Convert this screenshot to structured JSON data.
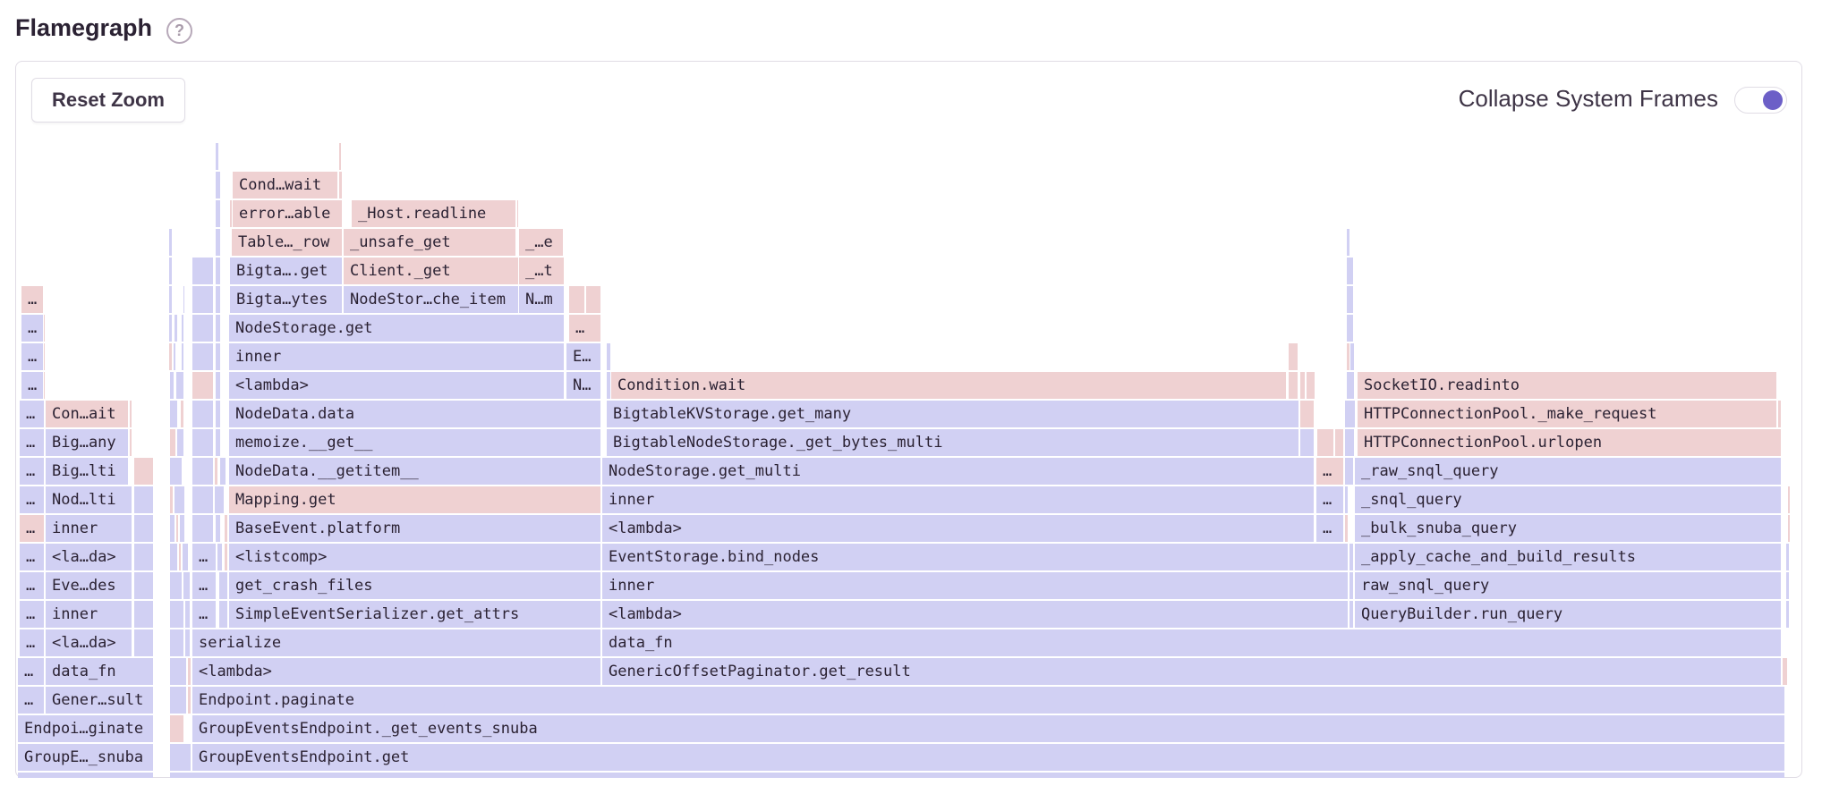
{
  "header": {
    "title": "Flamegraph",
    "help_icon": "question-circle-icon"
  },
  "toolbar": {
    "reset_zoom_label": "Reset Zoom",
    "collapse_label": "Collapse System Frames",
    "collapse_enabled": true
  },
  "colors": {
    "b": "#d1d0f3",
    "p": "#efd1d2",
    "accent": "#6c5fc7"
  },
  "flamegraph": {
    "frames": [
      [
        0,
        "",
        "b"
      ],
      [
        0,
        "",
        "b"
      ],
      [
        1,
        "GroupE…_snuba",
        "b"
      ],
      [
        1,
        "",
        "b"
      ],
      [
        1,
        "GroupEventsEndpoint.get",
        "b"
      ],
      [
        2,
        "Endpoi…ginate",
        "b"
      ],
      [
        2,
        "",
        "p"
      ],
      [
        2,
        "GroupEventsEndpoint._get_events_snuba",
        "b"
      ],
      [
        3,
        "…",
        "b"
      ],
      [
        3,
        "Gener…sult",
        "b"
      ],
      [
        3,
        "",
        "b"
      ],
      [
        3,
        "",
        "p"
      ],
      [
        3,
        "Endpoint.paginate",
        "b"
      ],
      [
        4,
        "…",
        "b"
      ],
      [
        4,
        "data_fn",
        "b"
      ],
      [
        4,
        "",
        "b"
      ],
      [
        4,
        "",
        "p"
      ],
      [
        4,
        "<lambda>",
        "b"
      ],
      [
        4,
        "GenericOffsetPaginator.get_result",
        "b"
      ],
      [
        4,
        "",
        "p"
      ],
      [
        5,
        "…",
        "b"
      ],
      [
        5,
        "<la…da>",
        "b"
      ],
      [
        5,
        "",
        "b"
      ],
      [
        5,
        "",
        "b"
      ],
      [
        5,
        "",
        "b"
      ],
      [
        5,
        "serialize",
        "b"
      ],
      [
        5,
        "data_fn",
        "b"
      ],
      [
        6,
        "…",
        "b"
      ],
      [
        6,
        "inner",
        "b"
      ],
      [
        6,
        "",
        "b"
      ],
      [
        6,
        "",
        "b"
      ],
      [
        6,
        "",
        "b"
      ],
      [
        6,
        "…",
        "b"
      ],
      [
        6,
        "",
        "b"
      ],
      [
        6,
        "SimpleEventSerializer.get_attrs",
        "b"
      ],
      [
        6,
        "<lambda>",
        "b"
      ],
      [
        6,
        "",
        "b"
      ],
      [
        6,
        "QueryBuilder.run_query",
        "b"
      ],
      [
        6,
        "",
        "b"
      ],
      [
        7,
        "…",
        "b"
      ],
      [
        7,
        "Eve…des",
        "b"
      ],
      [
        7,
        "",
        "b"
      ],
      [
        7,
        "",
        "b"
      ],
      [
        7,
        "",
        "b"
      ],
      [
        7,
        "…",
        "b"
      ],
      [
        7,
        "",
        "b"
      ],
      [
        7,
        "get_crash_files",
        "b"
      ],
      [
        7,
        "inner",
        "b"
      ],
      [
        7,
        "",
        "b"
      ],
      [
        7,
        "raw_snql_query",
        "b"
      ],
      [
        7,
        "",
        "b"
      ],
      [
        8,
        "…",
        "b"
      ],
      [
        8,
        "<la…da>",
        "b"
      ],
      [
        8,
        "",
        "b"
      ],
      [
        8,
        "",
        "b"
      ],
      [
        8,
        "",
        "p"
      ],
      [
        8,
        "",
        "b"
      ],
      [
        8,
        "…",
        "b"
      ],
      [
        8,
        "",
        "b"
      ],
      [
        8,
        "",
        "p"
      ],
      [
        8,
        "<listcomp>",
        "b"
      ],
      [
        8,
        "EventStorage.bind_nodes",
        "b"
      ],
      [
        8,
        "",
        "b"
      ],
      [
        8,
        "_apply_cache_and_build_results",
        "b"
      ],
      [
        8,
        "",
        "b"
      ],
      [
        9,
        "…",
        "p"
      ],
      [
        9,
        "inner",
        "b"
      ],
      [
        9,
        "",
        "b"
      ],
      [
        9,
        "",
        "b"
      ],
      [
        9,
        "",
        "p"
      ],
      [
        9,
        "",
        "b"
      ],
      [
        9,
        "",
        "b"
      ],
      [
        9,
        "",
        "b"
      ],
      [
        9,
        "",
        "p"
      ],
      [
        9,
        "BaseEvent.platform",
        "b"
      ],
      [
        9,
        "<lambda>",
        "b"
      ],
      [
        9,
        "…",
        "b"
      ],
      [
        9,
        "",
        "p"
      ],
      [
        9,
        "_bulk_snuba_query",
        "b"
      ],
      [
        9,
        "",
        "p"
      ],
      [
        10,
        "…",
        "b"
      ],
      [
        10,
        "Nod…lti",
        "b"
      ],
      [
        10,
        "",
        "b"
      ],
      [
        10,
        "",
        "p"
      ],
      [
        10,
        "",
        "b"
      ],
      [
        10,
        "",
        "b"
      ],
      [
        10,
        "",
        "b"
      ],
      [
        10,
        "Mapping.get",
        "p"
      ],
      [
        10,
        "inner",
        "b"
      ],
      [
        10,
        "…",
        "b"
      ],
      [
        10,
        "",
        "b"
      ],
      [
        10,
        "_snql_query",
        "b"
      ],
      [
        10,
        "",
        "p"
      ],
      [
        11,
        "…",
        "b"
      ],
      [
        11,
        "Big…lti",
        "b"
      ],
      [
        11,
        "",
        "p"
      ],
      [
        11,
        "",
        "b"
      ],
      [
        11,
        "",
        "b"
      ],
      [
        11,
        "",
        "p"
      ],
      [
        11,
        "",
        "b"
      ],
      [
        11,
        "NodeData.__getitem__",
        "b"
      ],
      [
        11,
        "NodeStorage.get_multi",
        "b"
      ],
      [
        11,
        "…",
        "p"
      ],
      [
        11,
        "",
        "b"
      ],
      [
        11,
        "_raw_snql_query",
        "b"
      ],
      [
        12,
        "…",
        "b"
      ],
      [
        12,
        "Big…any",
        "b"
      ],
      [
        12,
        "",
        "p"
      ],
      [
        12,
        "",
        "p"
      ],
      [
        12,
        "",
        "b"
      ],
      [
        12,
        "",
        "b"
      ],
      [
        12,
        "",
        "b"
      ],
      [
        12,
        "memoize.__get__",
        "b"
      ],
      [
        12,
        "BigtableNodeStorage._get_bytes_multi",
        "b"
      ],
      [
        12,
        "",
        "b"
      ],
      [
        12,
        "",
        "p"
      ],
      [
        12,
        "",
        "p"
      ],
      [
        12,
        "",
        "b"
      ],
      [
        12,
        "HTTPConnectionPool.urlopen",
        "p"
      ],
      [
        13,
        "…",
        "b"
      ],
      [
        13,
        "Con…ait",
        "p"
      ],
      [
        13,
        "",
        "p"
      ],
      [
        13,
        "",
        "b"
      ],
      [
        13,
        "",
        "p"
      ],
      [
        13,
        "",
        "b"
      ],
      [
        13,
        "",
        "b"
      ],
      [
        13,
        "NodeData.data",
        "b"
      ],
      [
        13,
        "BigtableKVStorage.get_many",
        "b"
      ],
      [
        13,
        "",
        "p"
      ],
      [
        13,
        "",
        "b"
      ],
      [
        13,
        "HTTPConnectionPool._make_request",
        "p"
      ],
      [
        13,
        "",
        "p"
      ],
      [
        14,
        "…",
        "b"
      ],
      [
        14,
        "",
        "p"
      ],
      [
        14,
        "",
        "b"
      ],
      [
        14,
        "",
        "b"
      ],
      [
        14,
        "",
        "p"
      ],
      [
        14,
        "",
        "b"
      ],
      [
        14,
        "<lambda>",
        "b"
      ],
      [
        14,
        "N…",
        "b"
      ],
      [
        14,
        "",
        "b"
      ],
      [
        14,
        "Condition.wait",
        "p"
      ],
      [
        14,
        "",
        "p"
      ],
      [
        14,
        "",
        "p"
      ],
      [
        14,
        "",
        "p"
      ],
      [
        14,
        "",
        "b"
      ],
      [
        14,
        "SocketIO.readinto",
        "p"
      ],
      [
        15,
        "…",
        "b"
      ],
      [
        15,
        "",
        "p"
      ],
      [
        15,
        "",
        "p"
      ],
      [
        15,
        "",
        "b"
      ],
      [
        15,
        "",
        "b"
      ],
      [
        15,
        "",
        "b"
      ],
      [
        15,
        "",
        "b"
      ],
      [
        15,
        "inner",
        "b"
      ],
      [
        15,
        "E…",
        "b"
      ],
      [
        15,
        "",
        "b"
      ],
      [
        15,
        "",
        "p"
      ],
      [
        15,
        "",
        "p"
      ],
      [
        15,
        "",
        "b"
      ],
      [
        16,
        "…",
        "b"
      ],
      [
        16,
        "",
        "p"
      ],
      [
        16,
        "",
        "b"
      ],
      [
        16,
        "",
        "b"
      ],
      [
        16,
        "",
        "b"
      ],
      [
        16,
        "",
        "b"
      ],
      [
        16,
        "",
        "b"
      ],
      [
        16,
        "NodeStorage.get",
        "b"
      ],
      [
        16,
        "…",
        "p"
      ],
      [
        16,
        "",
        "b"
      ],
      [
        17,
        "…",
        "p"
      ],
      [
        17,
        "",
        "b"
      ],
      [
        17,
        "",
        "b"
      ],
      [
        17,
        "",
        "b"
      ],
      [
        17,
        "",
        "b"
      ],
      [
        17,
        "Bigta…ytes",
        "b"
      ],
      [
        17,
        "NodeStor…che_item",
        "b"
      ],
      [
        17,
        "N…m",
        "b"
      ],
      [
        17,
        "",
        "p"
      ],
      [
        17,
        "",
        "p"
      ],
      [
        17,
        "",
        "b"
      ],
      [
        18,
        "",
        "b"
      ],
      [
        18,
        "",
        "b"
      ],
      [
        18,
        "",
        "b"
      ],
      [
        18,
        "Bigta….get",
        "b"
      ],
      [
        18,
        "Client._get",
        "p"
      ],
      [
        18,
        "_…t",
        "p"
      ],
      [
        18,
        "",
        "b"
      ],
      [
        19,
        "",
        "b"
      ],
      [
        19,
        "",
        "b"
      ],
      [
        19,
        "Table…_row",
        "p"
      ],
      [
        19,
        "_unsafe_get",
        "p"
      ],
      [
        19,
        "_…e",
        "p"
      ],
      [
        19,
        "",
        "b"
      ],
      [
        20,
        "",
        "b"
      ],
      [
        20,
        "",
        "p"
      ],
      [
        20,
        "error…able",
        "p"
      ],
      [
        20,
        "_Host.readline",
        "p"
      ],
      [
        20,
        "",
        "p"
      ],
      [
        21,
        "",
        "b"
      ],
      [
        21,
        "Cond…wait",
        "p"
      ],
      [
        21,
        "",
        "p"
      ],
      [
        22,
        "",
        "b"
      ],
      [
        22,
        "",
        "p"
      ]
    ]
  }
}
